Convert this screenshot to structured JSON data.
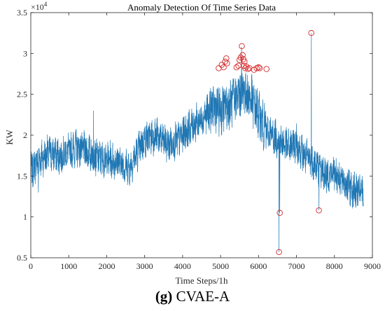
{
  "caption": {
    "label": "(g)",
    "text": "CVAE-A"
  },
  "chart_data": {
    "type": "line",
    "title": "Anomaly Detection Of Time Series Data",
    "xlabel": "Time Steps/1h",
    "ylabel": "KW",
    "y_exponent_label": "×10",
    "y_exponent": "4",
    "xlim": [
      0,
      9000
    ],
    "ylim": [
      0.5,
      3.5
    ],
    "y_scale_factor": 10000,
    "x_ticks": [
      0,
      1000,
      2000,
      3000,
      4000,
      5000,
      6000,
      7000,
      8000,
      9000
    ],
    "y_ticks": [
      0.5,
      1,
      1.5,
      2,
      2.5,
      3,
      3.5
    ],
    "x_tick_labels": [
      "0",
      "1000",
      "2000",
      "3000",
      "4000",
      "5000",
      "6000",
      "7000",
      "8000",
      "9000"
    ],
    "y_tick_labels": [
      "0.5",
      "1",
      "1.5",
      "2",
      "2.5",
      "3",
      "3.5"
    ],
    "grid": false,
    "series": [
      {
        "color": "#1f77b4",
        "trend": [
          [
            0,
            1.55
          ],
          [
            200,
            1.7
          ],
          [
            500,
            1.78
          ],
          [
            800,
            1.75
          ],
          [
            1000,
            1.8
          ],
          [
            1200,
            1.85
          ],
          [
            1500,
            1.8
          ],
          [
            1800,
            1.72
          ],
          [
            2000,
            1.7
          ],
          [
            2300,
            1.68
          ],
          [
            2600,
            1.6
          ],
          [
            2800,
            1.78
          ],
          [
            3000,
            1.95
          ],
          [
            3300,
            2.0
          ],
          [
            3600,
            1.88
          ],
          [
            3900,
            1.95
          ],
          [
            4200,
            2.1
          ],
          [
            4500,
            2.2
          ],
          [
            4800,
            2.35
          ],
          [
            5000,
            2.3
          ],
          [
            5300,
            2.4
          ],
          [
            5600,
            2.55
          ],
          [
            5800,
            2.45
          ],
          [
            6000,
            2.25
          ],
          [
            6200,
            2.05
          ],
          [
            6500,
            1.95
          ],
          [
            6800,
            1.85
          ],
          [
            7000,
            1.9
          ],
          [
            7200,
            1.75
          ],
          [
            7500,
            1.65
          ],
          [
            7800,
            1.5
          ],
          [
            8000,
            1.55
          ],
          [
            8300,
            1.4
          ],
          [
            8600,
            1.3
          ],
          [
            8760,
            1.3
          ]
        ],
        "spikes": [
          [
            200,
            1.3
          ],
          [
            1650,
            2.3
          ],
          [
            5550,
            3.08
          ],
          [
            6540,
            0.57
          ],
          [
            6560,
            1.05
          ],
          [
            7390,
            3.25
          ],
          [
            7590,
            1.08
          ]
        ]
      },
      {
        "color": "#d62728",
        "marker": "circle",
        "points": [
          [
            4950,
            2.82
          ],
          [
            5030,
            2.86
          ],
          [
            5080,
            2.83
          ],
          [
            5120,
            2.9
          ],
          [
            5150,
            2.94
          ],
          [
            5170,
            2.88
          ],
          [
            5420,
            2.83
          ],
          [
            5470,
            2.85
          ],
          [
            5500,
            2.92
          ],
          [
            5530,
            2.95
          ],
          [
            5560,
            3.09
          ],
          [
            5580,
            2.98
          ],
          [
            5600,
            2.93
          ],
          [
            5610,
            2.85
          ],
          [
            5630,
            2.9
          ],
          [
            5650,
            2.82
          ],
          [
            5680,
            2.84
          ],
          [
            5720,
            2.81
          ],
          [
            5760,
            2.82
          ],
          [
            5880,
            2.8
          ],
          [
            5950,
            2.82
          ],
          [
            6000,
            2.83
          ],
          [
            6030,
            2.82
          ],
          [
            6210,
            2.81
          ],
          [
            6540,
            0.57
          ],
          [
            6560,
            1.05
          ],
          [
            7390,
            3.25
          ],
          [
            7590,
            1.08
          ]
        ]
      }
    ]
  }
}
